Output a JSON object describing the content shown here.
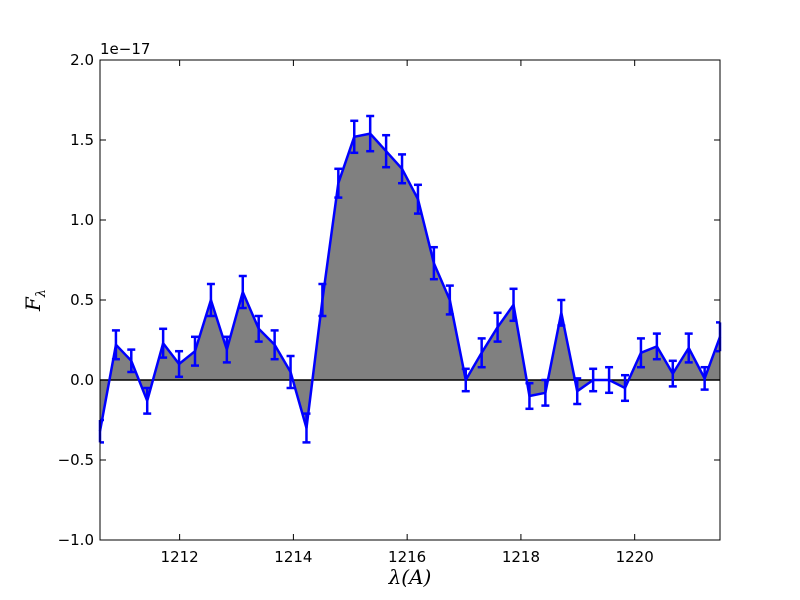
{
  "chart_data": {
    "type": "line",
    "title": "",
    "xlabel": "λ(A)",
    "ylabel": "F",
    "ylabel_subscript": "λ",
    "y_offset_label": "1e−17",
    "xlim": [
      1210.6,
      1221.5
    ],
    "ylim": [
      -1.0,
      2.0
    ],
    "y_scale_factor": "1e-17",
    "x_ticks": [
      1212,
      1214,
      1216,
      1218,
      1220
    ],
    "x_tick_labels": [
      "1212",
      "1214",
      "1216",
      "1218",
      "1220"
    ],
    "y_ticks": [
      -1.0,
      -0.5,
      0.0,
      0.5,
      1.0,
      1.5,
      2.0
    ],
    "y_tick_labels": [
      "−1.0",
      "−0.5",
      "0.0",
      "0.5",
      "1.0",
      "1.5",
      "2.0"
    ],
    "grid": false,
    "fill_color": "#808080",
    "line_color": "#0000ff",
    "zero_line_color": "#000000",
    "x": [
      1210.6,
      1210.88,
      1211.15,
      1211.43,
      1211.71,
      1211.99,
      1212.27,
      1212.55,
      1212.83,
      1213.11,
      1213.39,
      1213.67,
      1213.95,
      1214.23,
      1214.51,
      1214.79,
      1215.07,
      1215.35,
      1215.63,
      1215.91,
      1216.19,
      1216.47,
      1216.75,
      1217.03,
      1217.31,
      1217.59,
      1217.87,
      1218.15,
      1218.43,
      1218.71,
      1218.99,
      1219.27,
      1219.55,
      1219.83,
      1220.11,
      1220.39,
      1220.67,
      1220.95,
      1221.23,
      1221.5
    ],
    "y": [
      -0.32,
      0.22,
      0.12,
      -0.13,
      0.23,
      0.1,
      0.18,
      0.5,
      0.19,
      0.55,
      0.32,
      0.22,
      0.05,
      -0.3,
      0.5,
      1.23,
      1.52,
      1.54,
      1.43,
      1.32,
      1.13,
      0.73,
      0.5,
      0.0,
      0.17,
      0.33,
      0.47,
      -0.1,
      -0.08,
      0.42,
      -0.07,
      0.0,
      0.0,
      -0.05,
      0.17,
      0.21,
      0.04,
      0.2,
      0.01,
      0.27
    ],
    "yerr": [
      0.07,
      0.09,
      0.07,
      0.08,
      0.09,
      0.08,
      0.09,
      0.1,
      0.08,
      0.1,
      0.08,
      0.09,
      0.1,
      0.09,
      0.1,
      0.09,
      0.1,
      0.11,
      0.1,
      0.09,
      0.09,
      0.1,
      0.09,
      0.07,
      0.09,
      0.09,
      0.1,
      0.08,
      0.08,
      0.08,
      0.08,
      0.07,
      0.08,
      0.08,
      0.09,
      0.08,
      0.08,
      0.09,
      0.07,
      0.09
    ]
  }
}
